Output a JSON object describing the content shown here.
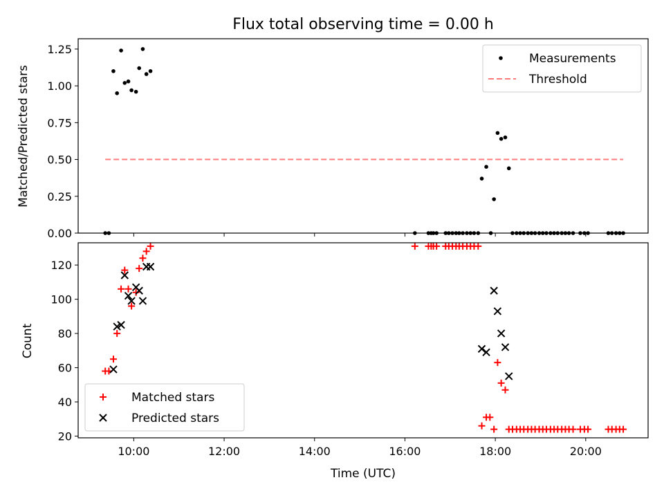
{
  "chart_data": [
    {
      "type": "scatter",
      "title": "Flux total observing time = 0.00 h",
      "xlabel": "",
      "ylabel": "Matched/Predicted stars",
      "ylim": [
        0,
        1.32
      ],
      "xlim": [
        8.77,
        21.38
      ],
      "x_unit": "hours UTC",
      "yticks": [
        {
          "v": 0,
          "label": "0.00"
        },
        {
          "v": 0.25,
          "label": "0.25"
        },
        {
          "v": 0.5,
          "label": "0.50"
        },
        {
          "v": 0.75,
          "label": "0.75"
        },
        {
          "v": 1.0,
          "label": "1.00"
        },
        {
          "v": 1.25,
          "label": "1.25"
        }
      ],
      "legend": {
        "position": "top-right",
        "entries": [
          "Measurements",
          "Threshold"
        ]
      },
      "series": [
        {
          "name": "Measurements",
          "marker": "dot",
          "color": "#000000",
          "points": [
            [
              9.37,
              0.0
            ],
            [
              9.45,
              0.0
            ],
            [
              9.55,
              1.1
            ],
            [
              9.63,
              0.95
            ],
            [
              9.72,
              1.24
            ],
            [
              9.8,
              1.02
            ],
            [
              9.88,
              1.03
            ],
            [
              9.95,
              0.97
            ],
            [
              10.05,
              0.96
            ],
            [
              10.12,
              1.12
            ],
            [
              10.2,
              1.25
            ],
            [
              10.28,
              1.08
            ],
            [
              10.37,
              1.1
            ],
            [
              16.22,
              0.0
            ],
            [
              16.52,
              0.0
            ],
            [
              16.58,
              0.0
            ],
            [
              16.63,
              0.0
            ],
            [
              16.7,
              0.0
            ],
            [
              16.9,
              0.0
            ],
            [
              16.97,
              0.0
            ],
            [
              17.05,
              0.0
            ],
            [
              17.13,
              0.0
            ],
            [
              17.2,
              0.0
            ],
            [
              17.28,
              0.0
            ],
            [
              17.37,
              0.0
            ],
            [
              17.45,
              0.0
            ],
            [
              17.53,
              0.0
            ],
            [
              17.62,
              0.0
            ],
            [
              17.7,
              0.37
            ],
            [
              17.8,
              0.45
            ],
            [
              17.9,
              0.0
            ],
            [
              17.97,
              0.23
            ],
            [
              18.05,
              0.68
            ],
            [
              18.13,
              0.64
            ],
            [
              18.22,
              0.65
            ],
            [
              18.3,
              0.44
            ],
            [
              18.38,
              0.0
            ],
            [
              18.47,
              0.0
            ],
            [
              18.55,
              0.0
            ],
            [
              18.63,
              0.0
            ],
            [
              18.72,
              0.0
            ],
            [
              18.8,
              0.0
            ],
            [
              18.88,
              0.0
            ],
            [
              18.97,
              0.0
            ],
            [
              19.05,
              0.0
            ],
            [
              19.13,
              0.0
            ],
            [
              19.22,
              0.0
            ],
            [
              19.3,
              0.0
            ],
            [
              19.38,
              0.0
            ],
            [
              19.47,
              0.0
            ],
            [
              19.55,
              0.0
            ],
            [
              19.63,
              0.0
            ],
            [
              19.72,
              0.0
            ],
            [
              19.88,
              0.0
            ],
            [
              19.97,
              0.0
            ],
            [
              20.05,
              0.0
            ],
            [
              20.5,
              0.0
            ],
            [
              20.58,
              0.0
            ],
            [
              20.67,
              0.0
            ],
            [
              20.75,
              0.0
            ],
            [
              20.83,
              0.0
            ]
          ]
        },
        {
          "name": "Threshold",
          "style": "dashed",
          "color": "#ff7b7b",
          "x": [
            9.37,
            20.83
          ],
          "y": [
            0.5,
            0.5
          ]
        }
      ]
    },
    {
      "type": "scatter",
      "title": "",
      "xlabel": "Time (UTC)",
      "ylabel": "Count",
      "ylim": [
        19,
        133
      ],
      "xlim": [
        8.77,
        21.38
      ],
      "x_unit": "hours UTC",
      "yticks": [
        {
          "v": 20,
          "label": "20"
        },
        {
          "v": 40,
          "label": "40"
        },
        {
          "v": 60,
          "label": "60"
        },
        {
          "v": 80,
          "label": "80"
        },
        {
          "v": 100,
          "label": "100"
        },
        {
          "v": 120,
          "label": "120"
        }
      ],
      "xticks": [
        {
          "v": 10,
          "label": "10:00"
        },
        {
          "v": 12,
          "label": "12:00"
        },
        {
          "v": 14,
          "label": "14:00"
        },
        {
          "v": 16,
          "label": "16:00"
        },
        {
          "v": 18,
          "label": "18:00"
        },
        {
          "v": 20,
          "label": "20:00"
        }
      ],
      "legend": {
        "position": "bottom-left",
        "entries": [
          "Matched stars",
          "Predicted stars"
        ]
      },
      "series": [
        {
          "name": "Matched stars",
          "marker": "plus",
          "color": "#ff0000",
          "points": [
            [
              9.37,
              58
            ],
            [
              9.45,
              58
            ],
            [
              9.55,
              65
            ],
            [
              9.63,
              80
            ],
            [
              9.72,
              106
            ],
            [
              9.8,
              117
            ],
            [
              9.88,
              106
            ],
            [
              9.95,
              96
            ],
            [
              10.05,
              104
            ],
            [
              10.12,
              118
            ],
            [
              10.2,
              124
            ],
            [
              10.28,
              128
            ],
            [
              10.37,
              131
            ],
            [
              16.22,
              131
            ],
            [
              16.52,
              131
            ],
            [
              16.58,
              131
            ],
            [
              16.63,
              131
            ],
            [
              16.7,
              131
            ],
            [
              16.9,
              131
            ],
            [
              16.97,
              131
            ],
            [
              17.05,
              131
            ],
            [
              17.13,
              131
            ],
            [
              17.2,
              131
            ],
            [
              17.28,
              131
            ],
            [
              17.37,
              131
            ],
            [
              17.45,
              131
            ],
            [
              17.53,
              131
            ],
            [
              17.62,
              131
            ],
            [
              17.7,
              26
            ],
            [
              17.8,
              31
            ],
            [
              17.88,
              31
            ],
            [
              17.97,
              24
            ],
            [
              18.05,
              63
            ],
            [
              18.13,
              51
            ],
            [
              18.22,
              47
            ],
            [
              18.3,
              24
            ],
            [
              18.38,
              24
            ],
            [
              18.47,
              24
            ],
            [
              18.55,
              24
            ],
            [
              18.63,
              24
            ],
            [
              18.72,
              24
            ],
            [
              18.8,
              24
            ],
            [
              18.88,
              24
            ],
            [
              18.97,
              24
            ],
            [
              19.05,
              24
            ],
            [
              19.13,
              24
            ],
            [
              19.22,
              24
            ],
            [
              19.3,
              24
            ],
            [
              19.38,
              24
            ],
            [
              19.47,
              24
            ],
            [
              19.55,
              24
            ],
            [
              19.63,
              24
            ],
            [
              19.72,
              24
            ],
            [
              19.88,
              24
            ],
            [
              19.97,
              24
            ],
            [
              20.05,
              24
            ],
            [
              20.5,
              24
            ],
            [
              20.58,
              24
            ],
            [
              20.67,
              24
            ],
            [
              20.75,
              24
            ],
            [
              20.83,
              24
            ]
          ]
        },
        {
          "name": "Predicted stars",
          "marker": "x",
          "color": "#000000",
          "points": [
            [
              9.55,
              59
            ],
            [
              9.63,
              84
            ],
            [
              9.72,
              85
            ],
            [
              9.8,
              114
            ],
            [
              9.88,
              102
            ],
            [
              9.95,
              99
            ],
            [
              10.05,
              107
            ],
            [
              10.12,
              105
            ],
            [
              10.2,
              99
            ],
            [
              10.28,
              119
            ],
            [
              10.37,
              119
            ],
            [
              17.7,
              71
            ],
            [
              17.8,
              69
            ],
            [
              17.97,
              105
            ],
            [
              18.05,
              93
            ],
            [
              18.13,
              80
            ],
            [
              18.22,
              72
            ],
            [
              18.3,
              55
            ]
          ]
        }
      ]
    }
  ]
}
